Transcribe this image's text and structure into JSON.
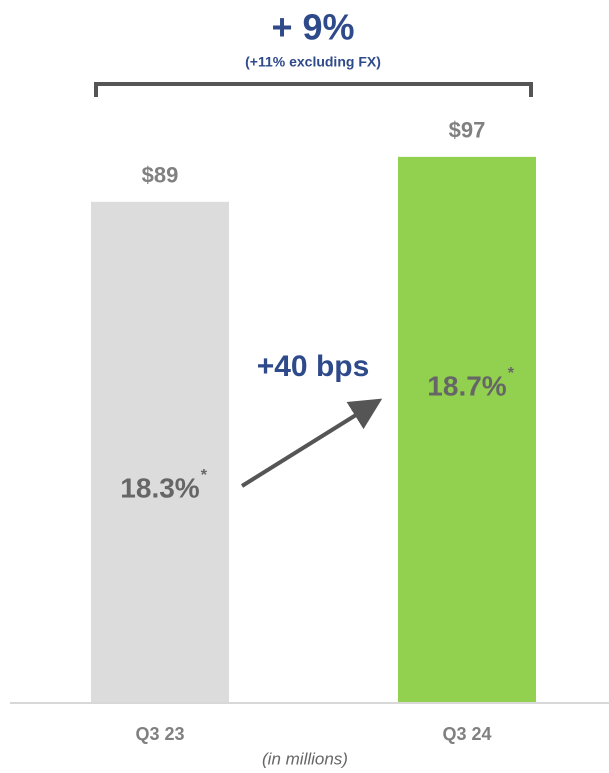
{
  "chart_data": {
    "type": "bar",
    "title": "+ 9%",
    "subtitle": "(+11% excluding FX)",
    "categories": [
      "Q3 23",
      "Q3 24"
    ],
    "values": [
      89,
      97
    ],
    "value_labels": [
      "$89",
      "$97"
    ],
    "colors": [
      "#dcdcdc",
      "#92d050"
    ],
    "ylim": [
      0,
      100
    ],
    "x_axis_label": "(in millions)",
    "annotations": {
      "change": "+40 bps",
      "margins": [
        "18.3%",
        "18.7%"
      ],
      "footnote_mark": "*"
    }
  }
}
